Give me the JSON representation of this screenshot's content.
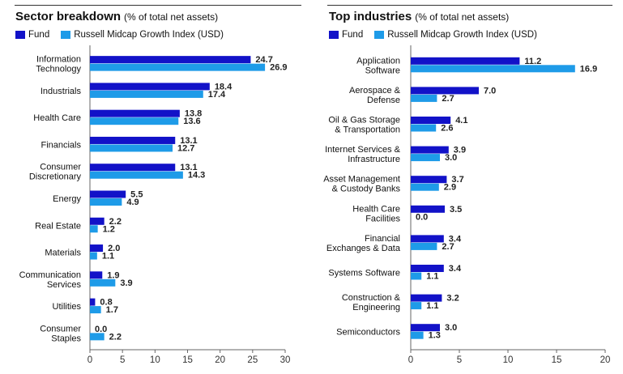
{
  "colors": {
    "fund": "#1212c8",
    "index": "#1e9be8",
    "axis": "#666666",
    "grid": "#cccccc"
  },
  "chart_data": [
    {
      "type": "bar",
      "orientation": "horizontal",
      "title": "Sector breakdown",
      "subtitle": "(% of total net assets)",
      "legend": [
        "Fund",
        "Russell Midcap Growth Index (USD)"
      ],
      "categories": [
        "Information\nTechnology",
        "Industrials",
        "Health Care",
        "Financials",
        "Consumer\nDiscretionary",
        "Energy",
        "Real Estate",
        "Materials",
        "Communication\nServices",
        "Utilities",
        "Consumer\nStaples"
      ],
      "series": [
        {
          "name": "Fund",
          "values": [
            24.7,
            18.4,
            13.8,
            13.1,
            13.1,
            5.5,
            2.2,
            2.0,
            1.9,
            0.8,
            0.0
          ]
        },
        {
          "name": "Russell Midcap Growth Index (USD)",
          "values": [
            26.9,
            17.4,
            13.6,
            12.7,
            14.3,
            4.9,
            1.2,
            1.1,
            3.9,
            1.7,
            2.2
          ]
        }
      ],
      "xlim": [
        0,
        30
      ],
      "xticks": [
        0,
        5,
        10,
        15,
        20,
        25,
        30
      ]
    },
    {
      "type": "bar",
      "orientation": "horizontal",
      "title": "Top industries",
      "subtitle": "(% of total net assets)",
      "legend": [
        "Fund",
        "Russell Midcap Growth Index (USD)"
      ],
      "categories": [
        "Application\nSoftware",
        "Aerospace &\nDefense",
        "Oil & Gas Storage\n& Transportation",
        "Internet Services &\nInfrastructure",
        "Asset Management\n& Custody Banks",
        "Health Care\nFacilities",
        "Financial\nExchanges & Data",
        "Systems Software",
        "Construction &\nEngineering",
        "Semiconductors"
      ],
      "series": [
        {
          "name": "Fund",
          "values": [
            11.2,
            7.0,
            4.1,
            3.9,
            3.7,
            3.5,
            3.4,
            3.4,
            3.2,
            3.0
          ]
        },
        {
          "name": "Russell Midcap Growth Index (USD)",
          "values": [
            16.9,
            2.7,
            2.6,
            3.0,
            2.9,
            0.0,
            2.7,
            1.1,
            1.1,
            1.3
          ]
        }
      ],
      "xlim": [
        0,
        20
      ],
      "xticks": [
        0,
        5,
        10,
        15,
        20
      ]
    }
  ]
}
